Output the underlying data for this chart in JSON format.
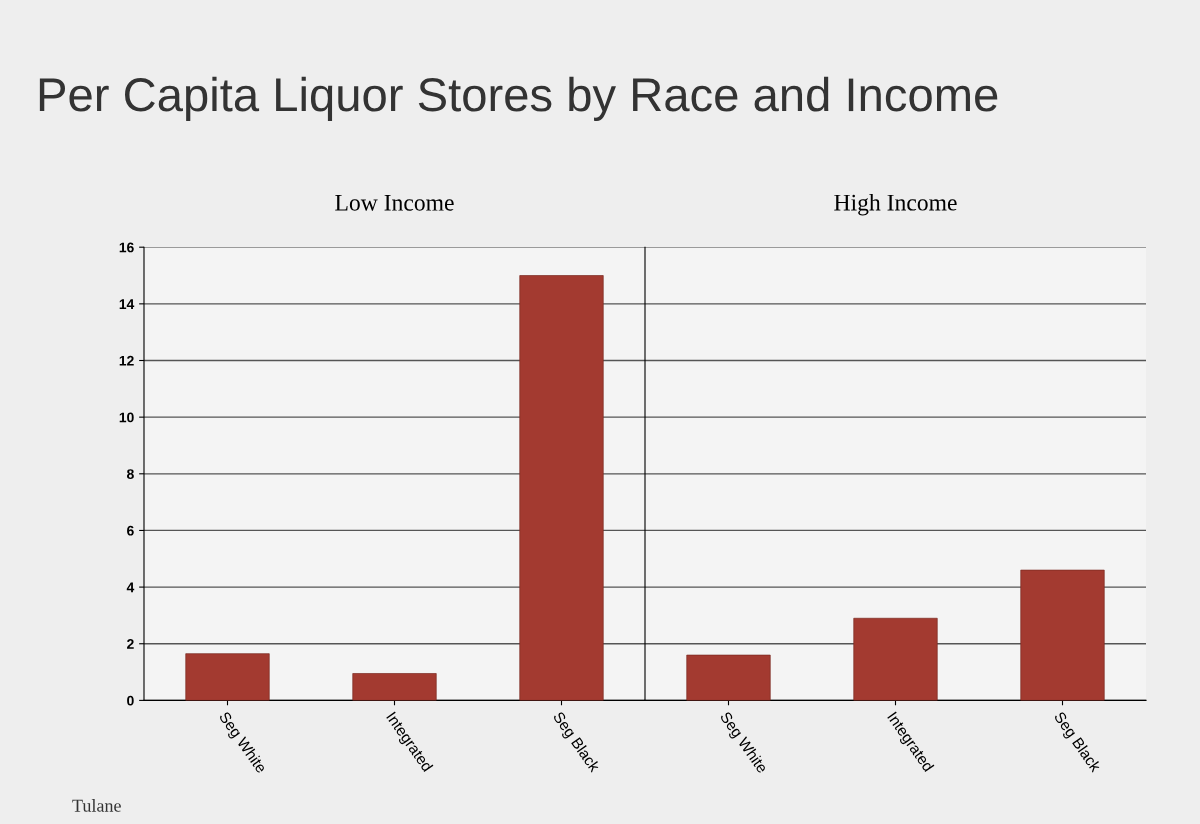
{
  "chart_data": [
    {
      "type": "bar",
      "title": "Per Capita Liquor Stores by Race and Income",
      "subtitle": "Low Income",
      "categories": [
        "Seg White",
        "Integrated",
        "Seg Black"
      ],
      "series": [
        {
          "color": "#a33a30",
          "values": [
            1.65,
            0.95,
            15
          ]
        }
      ],
      "ylim": [
        0,
        16
      ],
      "yticks": [
        0,
        2,
        4,
        6,
        8,
        10,
        12,
        14,
        16
      ],
      "grid": "y",
      "annotations": [
        "Tulane"
      ]
    },
    {
      "type": "bar",
      "subtitle": "High Income",
      "categories": [
        "Seg White",
        "Integrated",
        "Seg Black"
      ],
      "series": [
        {
          "color": "#a33a30",
          "values": [
            1.6,
            2.9,
            4.6
          ]
        }
      ],
      "ylim": [
        0,
        16
      ],
      "yticks": [
        0,
        2,
        4,
        6,
        8,
        10,
        12,
        14,
        16
      ],
      "grid": "y",
      "tick_labels": "x"
    }
  ]
}
